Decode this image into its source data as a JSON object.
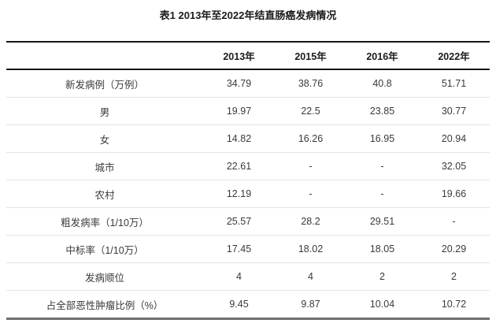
{
  "table": {
    "title": "表1 2013年至2022年结直肠癌发病情况",
    "columns": [
      "2013年",
      "2015年",
      "2016年",
      "2022年"
    ],
    "rows": [
      {
        "label": "新发病例（万例）",
        "values": [
          "34.79",
          "38.76",
          "40.8",
          "51.71"
        ]
      },
      {
        "label": "男",
        "values": [
          "19.97",
          "22.5",
          "23.85",
          "30.77"
        ]
      },
      {
        "label": "女",
        "values": [
          "14.82",
          "16.26",
          "16.95",
          "20.94"
        ]
      },
      {
        "label": "城市",
        "values": [
          "22.61",
          "-",
          "-",
          "32.05"
        ]
      },
      {
        "label": "农村",
        "values": [
          "12.19",
          "-",
          "-",
          "19.66"
        ]
      },
      {
        "label": "粗发病率（1/10万）",
        "values": [
          "25.57",
          "28.2",
          "29.51",
          "-"
        ]
      },
      {
        "label": "中标率（1/10万）",
        "values": [
          "17.45",
          "18.02",
          "18.05",
          "20.29"
        ]
      },
      {
        "label": "发病顺位",
        "values": [
          "4",
          "4",
          "2",
          "2"
        ]
      },
      {
        "label": "占全部恶性肿瘤比例（%）",
        "values": [
          "9.45",
          "9.87",
          "10.04",
          "10.72"
        ]
      }
    ],
    "colors": {
      "heavy_rule": "#161616",
      "bottom_rule": "#6f6f6f",
      "light_rule": "#e4e4e4",
      "header_text": "#1b1b1b",
      "body_text": "#3a3a3a"
    }
  },
  "chart_data": {
    "type": "table",
    "title": "表1 2013年至2022年结直肠癌发病情况",
    "categories": [
      "2013年",
      "2015年",
      "2016年",
      "2022年"
    ],
    "series": [
      {
        "name": "新发病例（万例）",
        "values": [
          34.79,
          38.76,
          40.8,
          51.71
        ]
      },
      {
        "name": "男",
        "values": [
          19.97,
          22.5,
          23.85,
          30.77
        ]
      },
      {
        "name": "女",
        "values": [
          14.82,
          16.26,
          16.95,
          20.94
        ]
      },
      {
        "name": "城市",
        "values": [
          22.61,
          null,
          null,
          32.05
        ]
      },
      {
        "name": "农村",
        "values": [
          12.19,
          null,
          null,
          19.66
        ]
      },
      {
        "name": "粗发病率（1/10万）",
        "values": [
          25.57,
          28.2,
          29.51,
          null
        ]
      },
      {
        "name": "中标率（1/10万）",
        "values": [
          17.45,
          18.02,
          18.05,
          20.29
        ]
      },
      {
        "name": "发病顺位",
        "values": [
          4,
          4,
          2,
          2
        ]
      },
      {
        "name": "占全部恶性肿瘤比例（%）",
        "values": [
          9.45,
          9.87,
          10.04,
          10.72
        ]
      }
    ],
    "missing_value_marker": "-"
  }
}
